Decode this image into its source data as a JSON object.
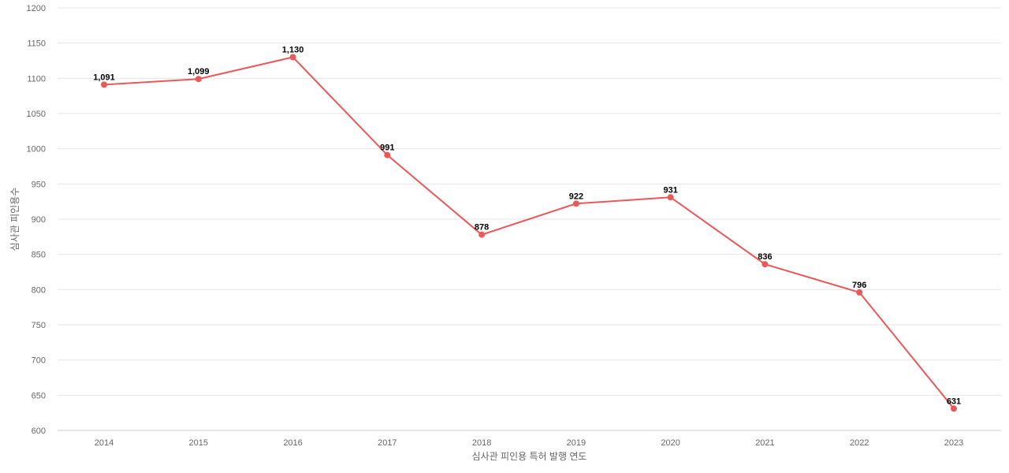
{
  "chart_data": {
    "type": "line",
    "title": "",
    "xlabel": "심사관 피인용 특허 발행 연도",
    "ylabel": "심사관 피인용수",
    "categories": [
      "2014",
      "2015",
      "2016",
      "2017",
      "2018",
      "2019",
      "2020",
      "2021",
      "2022",
      "2023"
    ],
    "series": [
      {
        "values": [
          1091,
          1099,
          1130,
          991,
          878,
          922,
          931,
          836,
          796,
          631
        ],
        "labels": [
          "1,091",
          "1,099",
          "1,130",
          "991",
          "878",
          "922",
          "931",
          "836",
          "796",
          "631"
        ],
        "color": "#ec5858"
      }
    ],
    "ylim": [
      600,
      1200
    ],
    "yticks": [
      "600",
      "650",
      "700",
      "750",
      "800",
      "850",
      "900",
      "950",
      "1000",
      "1050",
      "1100",
      "1150",
      "1200"
    ],
    "grid": true,
    "legend": "none"
  }
}
